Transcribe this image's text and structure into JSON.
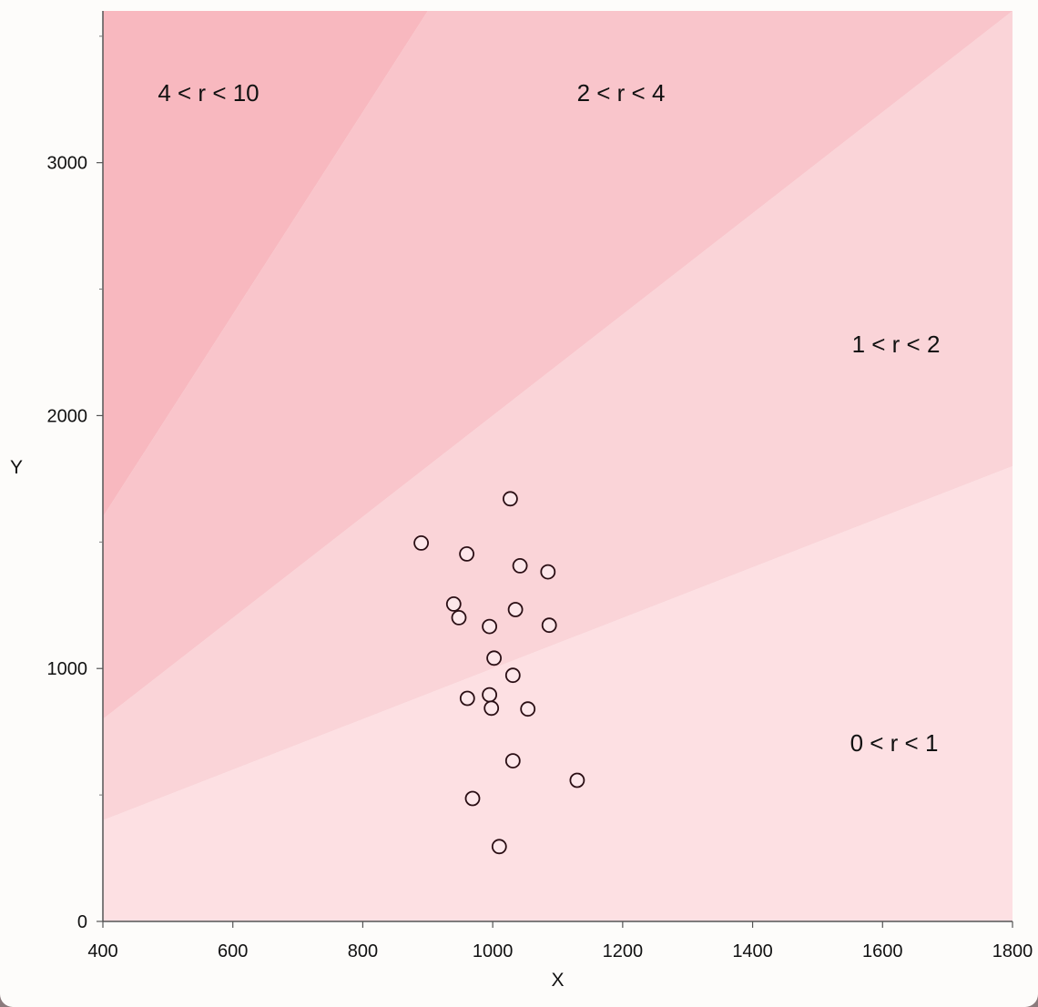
{
  "chart_data": {
    "type": "scatter",
    "xlabel": "X",
    "ylabel": "Y",
    "xlim": [
      400,
      1800
    ],
    "ylim": [
      0,
      3600
    ],
    "x_ticks": [
      400,
      600,
      800,
      1000,
      1200,
      1400,
      1600,
      1800
    ],
    "y_ticks": [
      0,
      1000,
      2000,
      3000
    ],
    "y_minor_ticks": [
      500,
      1500,
      2500,
      3500
    ],
    "grid": false,
    "regions": [
      {
        "label": "0 < r < 1",
        "r_min": 0,
        "r_max": 1,
        "color": "#fde0e3"
      },
      {
        "label": "1 < r < 2",
        "r_min": 1,
        "r_max": 2,
        "color": "#fad4d8"
      },
      {
        "label": "2 < r < 4",
        "r_min": 2,
        "r_max": 4,
        "color": "#f9c5cb"
      },
      {
        "label": "4 < r < 10",
        "r_min": 4,
        "r_max": 10,
        "color": "#f8b8bf"
      }
    ],
    "points": [
      {
        "x": 1027,
        "y": 1671
      },
      {
        "x": 890,
        "y": 1496
      },
      {
        "x": 960,
        "y": 1453
      },
      {
        "x": 1042,
        "y": 1406
      },
      {
        "x": 1085,
        "y": 1382
      },
      {
        "x": 940,
        "y": 1255
      },
      {
        "x": 1035,
        "y": 1233
      },
      {
        "x": 948,
        "y": 1201
      },
      {
        "x": 995,
        "y": 1166
      },
      {
        "x": 1087,
        "y": 1171
      },
      {
        "x": 1002,
        "y": 1041
      },
      {
        "x": 1031,
        "y": 973
      },
      {
        "x": 961,
        "y": 882
      },
      {
        "x": 995,
        "y": 896
      },
      {
        "x": 998,
        "y": 843
      },
      {
        "x": 1054,
        "y": 840
      },
      {
        "x": 1031,
        "y": 635
      },
      {
        "x": 1130,
        "y": 558
      },
      {
        "x": 969,
        "y": 486
      },
      {
        "x": 1010,
        "y": 296
      }
    ],
    "point_style": {
      "fill": "#fde7ea",
      "stroke": "#2a0e14"
    }
  }
}
